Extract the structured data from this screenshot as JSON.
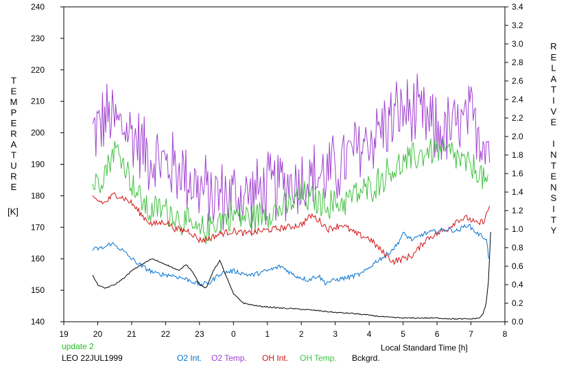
{
  "chart_data": {
    "type": "line",
    "xlabel": "Local Standard Time [h]",
    "ylabel_left": "TEMPERATURE",
    "ylabel_left_unit": "[K]",
    "ylabel_right": "RELATIVE INTENSITY",
    "x_ticks": [
      "19",
      "20",
      "21",
      "22",
      "23",
      "0",
      "1",
      "2",
      "3",
      "4",
      "5",
      "6",
      "7",
      "8"
    ],
    "x_range": [
      19,
      32
    ],
    "ylim_left": [
      140,
      240
    ],
    "ylim_right": [
      0.0,
      3.4
    ],
    "y_ticks_left": [
      140,
      150,
      160,
      170,
      180,
      190,
      200,
      210,
      220,
      230,
      240
    ],
    "y_ticks_right": [
      "0.0",
      "0.2",
      "0.4",
      "0.6",
      "0.8",
      "1.0",
      "1.2",
      "1.4",
      "1.6",
      "1.8",
      "2.0",
      "2.2",
      "2.4",
      "2.6",
      "2.8",
      "3.0",
      "3.2",
      "3.4"
    ],
    "grid": false,
    "series": [
      {
        "name": "O2 Int.",
        "axis": "right",
        "color": "#0070d0",
        "noise": 0.025,
        "points": [
          [
            19.85,
            0.78
          ],
          [
            20.2,
            0.8
          ],
          [
            20.4,
            0.85
          ],
          [
            20.7,
            0.78
          ],
          [
            21.0,
            0.68
          ],
          [
            21.3,
            0.6
          ],
          [
            21.7,
            0.52
          ],
          [
            22.2,
            0.5
          ],
          [
            22.7,
            0.45
          ],
          [
            23.0,
            0.4
          ],
          [
            23.3,
            0.42
          ],
          [
            23.6,
            0.52
          ],
          [
            24.0,
            0.55
          ],
          [
            24.5,
            0.5
          ],
          [
            25.0,
            0.55
          ],
          [
            25.4,
            0.6
          ],
          [
            25.8,
            0.5
          ],
          [
            26.2,
            0.45
          ],
          [
            26.5,
            0.5
          ],
          [
            26.7,
            0.42
          ],
          [
            27.0,
            0.45
          ],
          [
            27.4,
            0.48
          ],
          [
            27.8,
            0.52
          ],
          [
            28.2,
            0.65
          ],
          [
            28.5,
            0.72
          ],
          [
            28.8,
            0.82
          ],
          [
            29.0,
            0.95
          ],
          [
            29.3,
            0.88
          ],
          [
            29.6,
            0.95
          ],
          [
            30.0,
            0.98
          ],
          [
            30.3,
            1.0
          ],
          [
            30.6,
            0.98
          ],
          [
            30.9,
            1.05
          ],
          [
            31.2,
            0.95
          ],
          [
            31.45,
            0.9
          ],
          [
            31.52,
            0.7
          ]
        ]
      },
      {
        "name": "O2 Temp.",
        "axis": "left",
        "color": "#a040d0",
        "noise": 14.0,
        "points": [
          [
            19.85,
            200
          ],
          [
            20.3,
            205
          ],
          [
            20.7,
            202
          ],
          [
            21.0,
            200
          ],
          [
            21.5,
            193
          ],
          [
            22.0,
            190
          ],
          [
            22.5,
            188
          ],
          [
            23.0,
            182
          ],
          [
            23.5,
            180
          ],
          [
            24.0,
            180
          ],
          [
            24.5,
            180
          ],
          [
            25.0,
            182
          ],
          [
            25.5,
            184
          ],
          [
            26.0,
            185
          ],
          [
            26.5,
            186
          ],
          [
            27.0,
            188
          ],
          [
            27.5,
            193
          ],
          [
            28.0,
            198
          ],
          [
            28.5,
            203
          ],
          [
            29.0,
            207
          ],
          [
            29.5,
            205
          ],
          [
            30.0,
            200
          ],
          [
            30.5,
            201
          ],
          [
            31.0,
            204
          ],
          [
            31.3,
            200
          ],
          [
            31.55,
            196
          ]
        ]
      },
      {
        "name": "OH Int.",
        "axis": "right",
        "color": "#d01010",
        "noise": 0.035,
        "points": [
          [
            19.85,
            1.33
          ],
          [
            20.2,
            1.28
          ],
          [
            20.5,
            1.38
          ],
          [
            20.8,
            1.33
          ],
          [
            21.0,
            1.28
          ],
          [
            21.3,
            1.15
          ],
          [
            21.6,
            1.05
          ],
          [
            22.0,
            1.08
          ],
          [
            22.3,
            1.0
          ],
          [
            22.7,
            0.98
          ],
          [
            23.0,
            0.88
          ],
          [
            23.3,
            0.9
          ],
          [
            23.6,
            0.95
          ],
          [
            24.0,
            0.98
          ],
          [
            24.4,
            0.95
          ],
          [
            24.8,
            0.98
          ],
          [
            25.2,
            1.0
          ],
          [
            25.6,
            1.02
          ],
          [
            26.0,
            1.05
          ],
          [
            26.3,
            1.15
          ],
          [
            26.5,
            1.1
          ],
          [
            26.8,
            1.0
          ],
          [
            27.2,
            1.05
          ],
          [
            27.6,
            0.95
          ],
          [
            28.0,
            0.9
          ],
          [
            28.4,
            0.75
          ],
          [
            28.7,
            0.65
          ],
          [
            29.0,
            0.68
          ],
          [
            29.3,
            0.72
          ],
          [
            29.7,
            0.9
          ],
          [
            30.0,
            0.95
          ],
          [
            30.3,
            1.0
          ],
          [
            30.6,
            1.1
          ],
          [
            30.9,
            1.12
          ],
          [
            31.2,
            1.05
          ],
          [
            31.4,
            1.1
          ],
          [
            31.55,
            1.25
          ]
        ]
      },
      {
        "name": "OH Temp.",
        "axis": "left",
        "color": "#40c040",
        "noise": 6.0,
        "points": [
          [
            19.85,
            183
          ],
          [
            20.2,
            188
          ],
          [
            20.5,
            195
          ],
          [
            20.8,
            190
          ],
          [
            21.1,
            182
          ],
          [
            21.5,
            175
          ],
          [
            22.0,
            176
          ],
          [
            22.5,
            172
          ],
          [
            23.0,
            168
          ],
          [
            23.5,
            172
          ],
          [
            24.0,
            174
          ],
          [
            24.5,
            173
          ],
          [
            25.0,
            175
          ],
          [
            25.5,
            176
          ],
          [
            26.0,
            180
          ],
          [
            26.5,
            178
          ],
          [
            27.0,
            177
          ],
          [
            27.5,
            180
          ],
          [
            28.0,
            182
          ],
          [
            28.5,
            187
          ],
          [
            29.0,
            190
          ],
          [
            29.5,
            193
          ],
          [
            30.0,
            195
          ],
          [
            30.5,
            193
          ],
          [
            30.8,
            190
          ],
          [
            31.2,
            188
          ],
          [
            31.5,
            183
          ]
        ]
      },
      {
        "name": "Bckgrd.",
        "axis": "right",
        "color": "#000000",
        "noise": 0.006,
        "points": [
          [
            19.85,
            0.5
          ],
          [
            20.0,
            0.4
          ],
          [
            20.2,
            0.36
          ],
          [
            20.5,
            0.4
          ],
          [
            20.8,
            0.48
          ],
          [
            21.0,
            0.55
          ],
          [
            21.3,
            0.62
          ],
          [
            21.6,
            0.68
          ],
          [
            22.0,
            0.62
          ],
          [
            22.4,
            0.55
          ],
          [
            22.6,
            0.62
          ],
          [
            22.8,
            0.54
          ],
          [
            23.0,
            0.4
          ],
          [
            23.2,
            0.36
          ],
          [
            23.4,
            0.55
          ],
          [
            23.6,
            0.66
          ],
          [
            23.8,
            0.48
          ],
          [
            24.0,
            0.3
          ],
          [
            24.3,
            0.2
          ],
          [
            24.7,
            0.17
          ],
          [
            25.3,
            0.15
          ],
          [
            25.8,
            0.14
          ],
          [
            26.5,
            0.12
          ],
          [
            27.0,
            0.1
          ],
          [
            27.5,
            0.09
          ],
          [
            28.0,
            0.07
          ],
          [
            28.5,
            0.05
          ],
          [
            29.0,
            0.04
          ],
          [
            29.5,
            0.04
          ],
          [
            30.0,
            0.04
          ],
          [
            30.5,
            0.03
          ],
          [
            31.0,
            0.03
          ],
          [
            31.25,
            0.04
          ],
          [
            31.35,
            0.08
          ],
          [
            31.45,
            0.2
          ],
          [
            31.52,
            0.45
          ],
          [
            31.58,
            0.97
          ]
        ]
      }
    ]
  },
  "footer": {
    "version": "update 2",
    "version_color": "#20c020",
    "station": "LEO 22JUL1999",
    "legend": [
      {
        "label": "O2 Int.",
        "color": "#0070d0"
      },
      {
        "label": "O2 Temp.",
        "color": "#a040d0"
      },
      {
        "label": "OH Int.",
        "color": "#d01010"
      },
      {
        "label": "OH Temp.",
        "color": "#40c040"
      },
      {
        "label": "Bckgrd.",
        "color": "#000000"
      }
    ]
  }
}
